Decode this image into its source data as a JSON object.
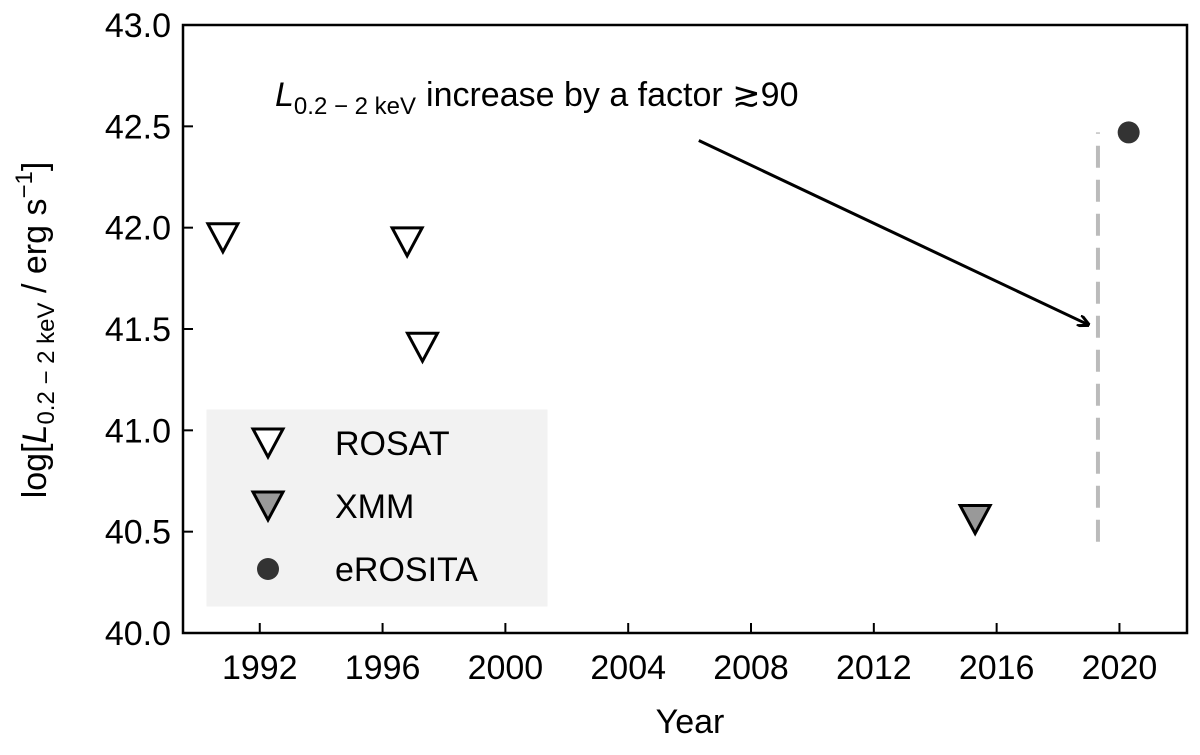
{
  "chart_data": {
    "type": "scatter",
    "xlabel": "Year",
    "ylabel": {
      "prefix": "log[",
      "symbol": "L",
      "subscript": "0.2 − 2 keV",
      "suffix": " / erg s",
      "superscript": "−1",
      "close": "]"
    },
    "xlim": [
      1989.5,
      2022.2
    ],
    "ylim": [
      40,
      43
    ],
    "xticks": [
      1992,
      1996,
      2000,
      2004,
      2008,
      2012,
      2016,
      2020
    ],
    "yticks": [
      {
        "value": 40,
        "label": "40.0"
      },
      {
        "value": 40.5,
        "label": "40.5"
      },
      {
        "value": 41,
        "label": "41.0"
      },
      {
        "value": 41.5,
        "label": "41.5"
      },
      {
        "value": 42,
        "label": "42.0"
      },
      {
        "value": 42.5,
        "label": "42.5"
      },
      {
        "value": 43,
        "label": "43.0"
      }
    ],
    "legend": "lower left",
    "series": [
      {
        "name": "ROSAT",
        "marker": "triangle-down",
        "color": "#ffffff",
        "x": [
          1990.8,
          1996.8,
          1997.3
        ],
        "values": [
          41.95,
          41.93,
          41.41
        ]
      },
      {
        "name": "XMM",
        "marker": "triangle-down",
        "color": "#999999",
        "x": [
          2015.3
        ],
        "values": [
          40.56
        ]
      },
      {
        "name": "eROSITA",
        "marker": "circle",
        "color": "#333333",
        "x": [
          2020.3
        ],
        "values": [
          42.47
        ]
      }
    ],
    "vline": {
      "x": 2019.3,
      "ymin": 40.45,
      "ymax": 42.47,
      "color": "#bbbbbb"
    },
    "annotation": {
      "symbol": "L",
      "subscript": "0.2 − 2 keV",
      "text": "increase by a factor ≳90",
      "xytext": [
        2006.3,
        42.43
      ],
      "xy": [
        2019.0,
        41.52
      ]
    }
  }
}
